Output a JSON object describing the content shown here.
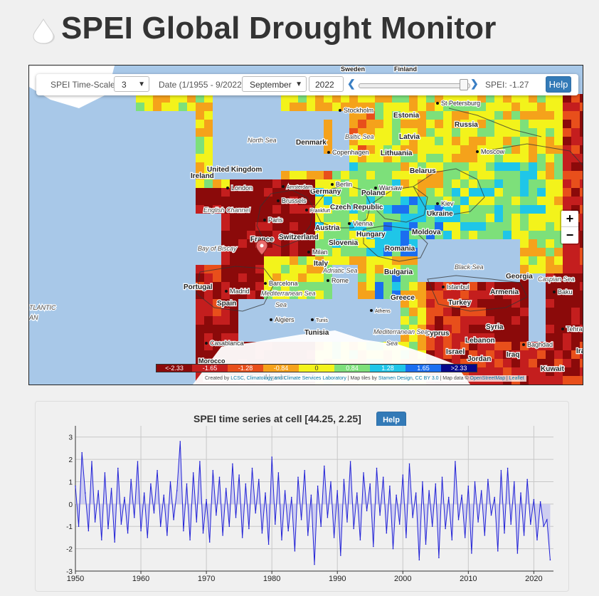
{
  "page": {
    "title": "SPEI Global Drought Monitor"
  },
  "controls": {
    "timescale_label": "SPEI Time-Scale",
    "timescale_value": "3",
    "date_label": "Date (1/1955 - 9/2022)",
    "month_value": "September",
    "year_value": "2022",
    "slider_position": 0.98,
    "spei_readout": "SPEI: -1.27",
    "help_label": "Help"
  },
  "map": {
    "zoom_in": "+",
    "zoom_out": "−",
    "legend": {
      "labels": [
        "<-2.33",
        "-1.65",
        "-1.28",
        "-0.84",
        "0",
        "0.84",
        "1.28",
        "1.65",
        ">2.33"
      ],
      "colors": [
        "#8b0a0a",
        "#c41e1e",
        "#e84f1b",
        "#f5a21b",
        "#f3f31b",
        "#7de07a",
        "#1fc6e8",
        "#1b6ef0",
        "#07078a"
      ]
    },
    "attribution": {
      "prefix": "Created by",
      "lcsc": "LCSC",
      "lab": "Climatology and Climate Services Laboratory",
      "tiles": "| Map tiles by",
      "stamen": "Stamen Design",
      "cc": "CC BY 3.0",
      "mapdata": "| Map data ©",
      "osm": "OpenStreetMap",
      "leaflet": "Leaflet"
    },
    "labels": {
      "countries": [
        "Russia",
        "Estonia",
        "Latvia",
        "Lithuania",
        "Denmark",
        "United Kingdom",
        "Ireland",
        "Belarus",
        "Poland",
        "Germany",
        "Czech Republic",
        "Ukraine",
        "Austria",
        "Slovenia",
        "Hungary",
        "Moldova",
        "Romania",
        "Switzerland",
        "France",
        "Italy",
        "Bulgaria",
        "Portugal",
        "Spain",
        "Greece",
        "Turkey",
        "Georgia",
        "Armenia",
        "Syria",
        "Tunisia",
        "Cyprus",
        "Lebanon",
        "Israel",
        "Jordan",
        "Iraq",
        "Kuwait",
        "Ira"
      ],
      "cities": [
        "Stockholm",
        "St Petersburg",
        "Moscow",
        "Copenhagen",
        "London",
        "Amsterdam",
        "Berlin",
        "Warsaw",
        "Brussels",
        "Frankfurt",
        "Paris",
        "Kiev",
        "Vienna",
        "Milan",
        "Rome",
        "Barcelona",
        "Madrid",
        "Algiers",
        "Tunis",
        "Athens",
        "Istanbul",
        "Baku",
        "Tehran",
        "Baghdad",
        "Casablanca"
      ],
      "seas": [
        "North Sea",
        "Baltic Sea",
        "English Channel",
        "Bay of Biscay",
        "Black Sea",
        "Caspian Sea",
        "Adriatic Sea",
        "Mediterranean Sea",
        "Mediterranean Sea",
        "TLANTIC",
        "AN"
      ],
      "partial": [
        "Sweden",
        "Finland",
        "Morocco",
        "Algeria"
      ]
    }
  },
  "timeseries": {
    "title": "SPEI time series at cell [44.25, 2.25]",
    "help_label": "Help",
    "chart_data": {
      "type": "area",
      "title": "SPEI time series at cell [44.25, 2.25]",
      "xlabel": "",
      "ylabel": "",
      "xlim": [
        1950,
        2023
      ],
      "ylim": [
        -3,
        3.5
      ],
      "x_ticks": [
        1950,
        1960,
        1970,
        1980,
        1990,
        2000,
        2010,
        2020
      ],
      "y_ticks": [
        -3,
        -2,
        -1,
        0,
        1,
        2,
        3
      ],
      "grid": true,
      "series_color": "#2323d6",
      "fill_color": "#c8c8f0",
      "x": [
        1950.0,
        1950.5,
        1951.0,
        1951.5,
        1952.0,
        1952.5,
        1953.0,
        1953.5,
        1954.0,
        1954.5,
        1955.0,
        1955.5,
        1956.0,
        1956.5,
        1957.0,
        1957.5,
        1958.0,
        1958.5,
        1959.0,
        1959.5,
        1960.0,
        1960.5,
        1961.0,
        1961.5,
        1962.0,
        1962.5,
        1963.0,
        1963.5,
        1964.0,
        1964.5,
        1965.0,
        1965.5,
        1966.0,
        1966.5,
        1967.0,
        1967.5,
        1968.0,
        1968.5,
        1969.0,
        1969.5,
        1970.0,
        1970.5,
        1971.0,
        1971.5,
        1972.0,
        1972.5,
        1973.0,
        1973.5,
        1974.0,
        1974.5,
        1975.0,
        1975.5,
        1976.0,
        1976.5,
        1977.0,
        1977.5,
        1978.0,
        1978.5,
        1979.0,
        1979.5,
        1980.0,
        1980.5,
        1981.0,
        1981.5,
        1982.0,
        1982.5,
        1983.0,
        1983.5,
        1984.0,
        1984.5,
        1985.0,
        1985.5,
        1986.0,
        1986.5,
        1987.0,
        1987.5,
        1988.0,
        1988.5,
        1989.0,
        1989.5,
        1990.0,
        1990.5,
        1991.0,
        1991.5,
        1992.0,
        1992.5,
        1993.0,
        1993.5,
        1994.0,
        1994.5,
        1995.0,
        1995.5,
        1996.0,
        1996.5,
        1997.0,
        1997.5,
        1998.0,
        1998.5,
        1999.0,
        1999.5,
        2000.0,
        2000.5,
        2001.0,
        2001.5,
        2002.0,
        2002.5,
        2003.0,
        2003.5,
        2004.0,
        2004.5,
        2005.0,
        2005.5,
        2006.0,
        2006.5,
        2007.0,
        2007.5,
        2008.0,
        2008.5,
        2009.0,
        2009.5,
        2010.0,
        2010.5,
        2011.0,
        2011.5,
        2012.0,
        2012.5,
        2013.0,
        2013.5,
        2014.0,
        2014.5,
        2015.0,
        2015.5,
        2016.0,
        2016.5,
        2017.0,
        2017.5,
        2018.0,
        2018.5,
        2019.0,
        2019.5,
        2020.0,
        2020.5,
        2021.0,
        2021.5,
        2022.0,
        2022.5
      ],
      "values": [
        0.8,
        -1.0,
        2.3,
        0.5,
        -1.2,
        1.9,
        -0.8,
        0.6,
        -1.6,
        1.4,
        -1.1,
        0.7,
        -1.7,
        1.6,
        -0.9,
        0.3,
        -1.3,
        1.1,
        -0.6,
        1.9,
        -1.2,
        0.5,
        -1.5,
        0.9,
        -0.4,
        1.5,
        -1.0,
        0.4,
        -1.4,
        1.0,
        -0.7,
        0.6,
        2.8,
        -1.2,
        0.9,
        -1.6,
        1.4,
        -0.8,
        1.9,
        -1.3,
        0.2,
        -1.7,
        1.5,
        -0.5,
        1.2,
        -1.4,
        0.7,
        -1.0,
        1.8,
        -0.6,
        1.3,
        -1.5,
        0.9,
        -1.1,
        1.6,
        -0.4,
        1.1,
        -1.3,
        0.5,
        -1.8,
        2.1,
        -0.9,
        1.4,
        -1.6,
        0.6,
        -1.2,
        0.3,
        -2.1,
        1.2,
        -0.7,
        1.5,
        -1.4,
        0.4,
        -2.7,
        0.8,
        -1.0,
        1.7,
        -0.6,
        1.0,
        -1.5,
        0.6,
        -2.3,
        1.1,
        -0.8,
        1.9,
        -1.1,
        0.5,
        -1.6,
        1.4,
        -0.3,
        0.9,
        -1.9,
        1.6,
        -0.5,
        1.2,
        -1.3,
        0.8,
        -2.0,
        0.4,
        -0.9,
        1.3,
        -1.5,
        1.8,
        -0.6,
        0.5,
        -2.5,
        1.0,
        -1.8,
        0.6,
        -1.0,
        0.9,
        -2.4,
        1.2,
        -1.1,
        0.3,
        -1.6,
        1.9,
        -0.7,
        0.4,
        -1.5,
        0.8,
        -2.2,
        1.0,
        -0.8,
        0.6,
        -1.4,
        1.1,
        -0.5,
        0.3,
        -2.1,
        1.5,
        -1.3,
        1.6,
        -0.9,
        1.0,
        -2.2,
        0.5,
        -1.4,
        1.1,
        -0.9,
        0.2,
        -1.6,
        0.1,
        -1.0,
        -0.7,
        -2.5
      ]
    }
  }
}
